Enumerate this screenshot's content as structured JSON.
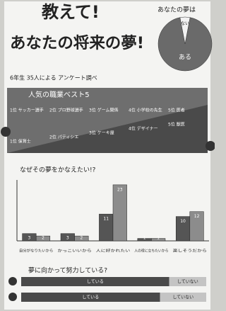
{
  "header": {
    "title": "教えて!",
    "subtitle": "あなたの将来の夢!",
    "note": "6年生 35人による アンケート調べ"
  },
  "ranking": {
    "title": "人気の職業ベスト5",
    "top": [
      "1位 サッカー選手",
      "2位 プロ野球選手",
      "3位 ゲーム関係",
      "4位 小学校の先生",
      "5位 医者"
    ],
    "bottom": [
      "1位 保育士",
      "2位 パティシエ",
      "3位 ケーキ屋",
      "4位 デザイナー",
      "5位 獣医"
    ]
  },
  "chart_data": [
    {
      "type": "pie",
      "title": "あなたの夢は",
      "categories": [
        "ある",
        "ない"
      ],
      "values": [
        94,
        6
      ],
      "colors": [
        "#6a6a6a",
        "#f2f2f2"
      ]
    },
    {
      "type": "bar",
      "title": "なぜその夢をかなえたい!?",
      "categories": [
        "自分がなりたいから",
        "かっこいいから",
        "人に好かれたい",
        "人の役に立ちたいから",
        "楽しそうだから"
      ],
      "series": [
        {
          "color": "#555555",
          "values": [
            3,
            3,
            11,
            1,
            10
          ]
        },
        {
          "color": "#8c8c8c",
          "values": [
            2,
            2,
            23,
            1,
            12
          ]
        }
      ],
      "ylim": [
        0,
        25
      ]
    },
    {
      "type": "bar",
      "orientation": "horizontal",
      "stacked": true,
      "title": "夢に向かって努力している?",
      "series": [
        {
          "name": "している",
          "color": "#4a4a4a",
          "values": [
            80,
            75
          ]
        },
        {
          "name": "していない",
          "color": "#c4c4c4",
          "values": [
            20,
            25
          ]
        }
      ],
      "xlim": [
        0,
        100
      ]
    }
  ]
}
